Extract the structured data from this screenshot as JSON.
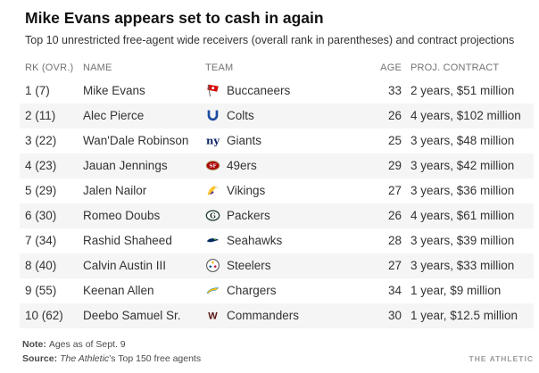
{
  "header": {
    "title": "Mike Evans appears set to cash in again",
    "subtitle": "Top 10 unrestricted free-agent wide receivers (overall rank in parentheses) and contract projections"
  },
  "chart_data": {
    "type": "table",
    "title": "Mike Evans appears set to cash in again",
    "subtitle": "Top 10 unrestricted free-agent wide receivers (overall rank in parentheses) and contract projections",
    "columns": [
      "RK (OVR.)",
      "NAME",
      "TEAM",
      "AGE",
      "PROJ. CONTRACT"
    ],
    "rows": [
      {
        "rank": 1,
        "overall": 7,
        "rank_display": "1 (7)",
        "name": "Mike Evans",
        "team": "Buccaneers",
        "age": 33,
        "contract_years": 2,
        "contract_millions": 51,
        "contract_display": "2 years, $51 million",
        "logo": {
          "icon": "pirate-flag-icon",
          "colors": [
            "#d50a0a",
            "#6e6e6e",
            "#ffffff"
          ]
        }
      },
      {
        "rank": 2,
        "overall": 11,
        "rank_display": "2 (11)",
        "name": "Alec Pierce",
        "team": "Colts",
        "age": 26,
        "contract_years": 4,
        "contract_millions": 102,
        "contract_display": "4 years, $102 million",
        "logo": {
          "icon": "horseshoe-icon",
          "colors": [
            "#1d4ea0"
          ]
        }
      },
      {
        "rank": 3,
        "overall": 22,
        "rank_display": "3 (22)",
        "name": "Wan'Dale Robinson",
        "team": "Giants",
        "age": 25,
        "contract_years": 3,
        "contract_millions": 48,
        "contract_display": "3 years, $48 million",
        "logo": {
          "icon": "ny-monogram-icon",
          "colors": [
            "#0b2265"
          ]
        }
      },
      {
        "rank": 4,
        "overall": 23,
        "rank_display": "4 (23)",
        "name": "Jauan Jennings",
        "team": "49ers",
        "age": 29,
        "contract_years": 3,
        "contract_millions": 42,
        "contract_display": "3 years, $42 million",
        "logo": {
          "icon": "sf-oval-icon",
          "colors": [
            "#aa0000",
            "#b3995d",
            "#ffffff"
          ]
        }
      },
      {
        "rank": 5,
        "overall": 29,
        "rank_display": "5 (29)",
        "name": "Jalen Nailor",
        "team": "Vikings",
        "age": 27,
        "contract_years": 3,
        "contract_millions": 36,
        "contract_display": "3 years, $36 million",
        "logo": {
          "icon": "viking-head-icon",
          "colors": [
            "#4f2683",
            "#ffc62f",
            "#efe1c6"
          ]
        }
      },
      {
        "rank": 6,
        "overall": 30,
        "rank_display": "6 (30)",
        "name": "Romeo Doubs",
        "team": "Packers",
        "age": 26,
        "contract_years": 4,
        "contract_millions": 61,
        "contract_display": "4 years, $61 million",
        "logo": {
          "icon": "g-oval-icon",
          "colors": [
            "#203731",
            "#ffffff"
          ]
        }
      },
      {
        "rank": 7,
        "overall": 34,
        "rank_display": "7 (34)",
        "name": "Rashid Shaheed",
        "team": "Seahawks",
        "age": 28,
        "contract_years": 3,
        "contract_millions": 39,
        "contract_display": "3 years, $39 million",
        "logo": {
          "icon": "seahawk-icon",
          "colors": [
            "#002a5c",
            "#69be28"
          ]
        }
      },
      {
        "rank": 8,
        "overall": 40,
        "rank_display": "8 (40)",
        "name": "Calvin Austin III",
        "team": "Steelers",
        "age": 27,
        "contract_years": 3,
        "contract_millions": 33,
        "contract_display": "3 years, $33 million",
        "logo": {
          "icon": "steelers-hypocycloids-icon",
          "colors": [
            "#4a4a4a",
            "#ffb612",
            "#c60c30",
            "#00539b"
          ]
        }
      },
      {
        "rank": 9,
        "overall": 55,
        "rank_display": "9 (55)",
        "name": "Keenan Allen",
        "team": "Chargers",
        "age": 34,
        "contract_years": 1,
        "contract_millions": 9,
        "contract_display": "1 year, $9 million",
        "logo": {
          "icon": "lightning-bolt-icon",
          "colors": [
            "#ffc20e",
            "#0080c6"
          ]
        }
      },
      {
        "rank": 10,
        "overall": 62,
        "rank_display": "10 (62)",
        "name": "Deebo Samuel Sr.",
        "team": "Commanders",
        "age": 30,
        "contract_years": 1,
        "contract_millions": 12.5,
        "contract_display": "1 year, $12.5 million",
        "logo": {
          "icon": "w-monogram-icon",
          "colors": [
            "#5a1414"
          ]
        }
      }
    ]
  },
  "footer": {
    "note_label": "Note:",
    "note_text": "Ages as of Sept. 9",
    "source_label": "Source:",
    "source_publication": "The Athletic",
    "source_text": "’s Top 150 free agents",
    "credit": "THE ATHLETIC"
  },
  "colors": {
    "row_stripe": "#f5f5f5",
    "body_text": "#333333",
    "column_header_text": "#737373",
    "title_text": "#121212",
    "footer_text": "#4a4a4a",
    "credit_text": "#9a9a9a"
  }
}
